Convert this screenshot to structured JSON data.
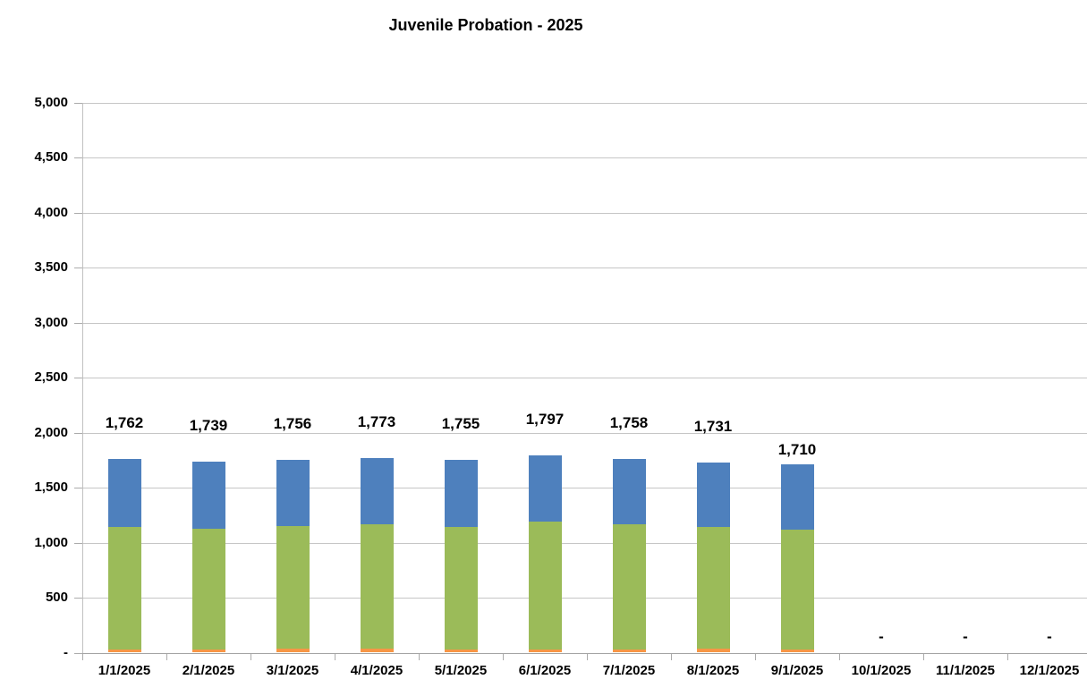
{
  "chart_data": {
    "type": "bar",
    "stacked": true,
    "title": "Juvenile Probation - 2025",
    "xlabel": "",
    "ylabel": "",
    "ylim": [
      0,
      5000
    ],
    "ytick_step": 500,
    "ytick_labels": [
      "-",
      "500",
      "1,000",
      "1,500",
      "2,000",
      "2,500",
      "3,000",
      "3,500",
      "4,000",
      "4,500",
      "5,000"
    ],
    "grid": true,
    "legend_position": "none",
    "categories": [
      "1/1/2025",
      "2/1/2025",
      "3/1/2025",
      "4/1/2025",
      "5/1/2025",
      "6/1/2025",
      "7/1/2025",
      "8/1/2025",
      "9/1/2025",
      "10/1/2025",
      "11/1/2025",
      "12/1/2025"
    ],
    "series": [
      {
        "name": "orange-segment",
        "color": "#F79646",
        "values": [
          30,
          30,
          35,
          35,
          30,
          30,
          30,
          35,
          30,
          0,
          0,
          0
        ]
      },
      {
        "name": "green-segment",
        "color": "#9BBB59",
        "values": [
          1110,
          1095,
          1115,
          1130,
          1115,
          1160,
          1135,
          1105,
          1090,
          0,
          0,
          0
        ]
      },
      {
        "name": "blue-segment",
        "color": "#4E80BD",
        "values": [
          622,
          614,
          606,
          608,
          610,
          607,
          593,
          591,
          590,
          0,
          0,
          0
        ]
      }
    ],
    "totals": [
      1762,
      1739,
      1756,
      1773,
      1755,
      1797,
      1758,
      1731,
      1710,
      null,
      null,
      null
    ],
    "total_labels": [
      "1,762",
      "1,739",
      "1,756",
      "1,773",
      "1,755",
      "1,797",
      "1,758",
      "1,731",
      "1,710",
      "-",
      "-",
      "-"
    ]
  },
  "colors": {
    "background": "#FFFFFF",
    "gridline": "#C6C6C6",
    "y_axis_line": "#C0C0C0",
    "baseline": "#A3A3A3",
    "tick": "#ABABAB",
    "text": "#000000"
  }
}
